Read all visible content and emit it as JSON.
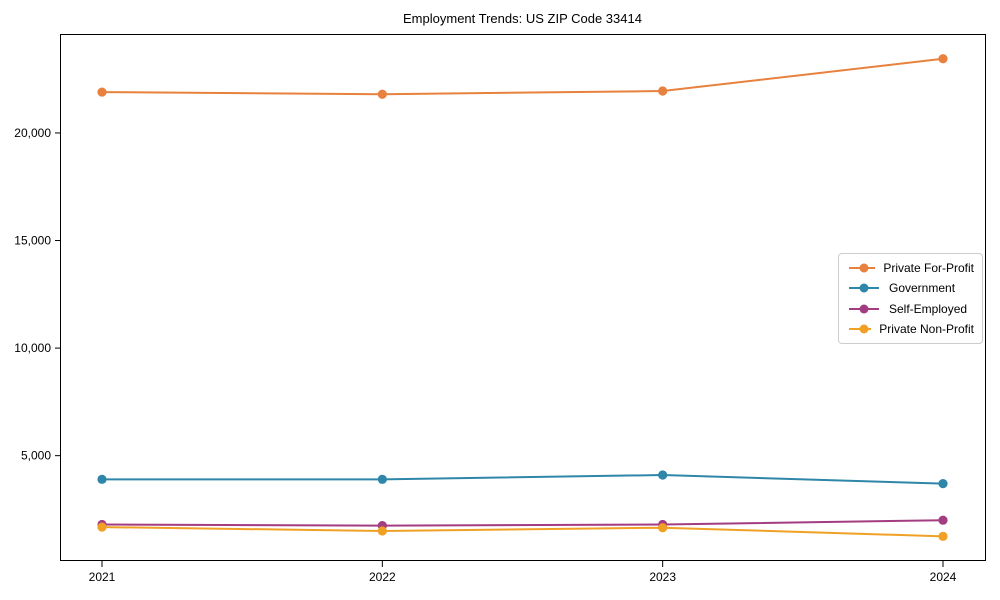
{
  "chart_data": {
    "type": "line",
    "title": "Employment Trends: US ZIP Code 33414",
    "xlabel": "",
    "ylabel": "",
    "x_tick_labels": [
      "2021",
      "2022",
      "2023",
      "2024"
    ],
    "categories": [
      2021,
      2022,
      2023,
      2024
    ],
    "series": [
      {
        "name": "Private For-Profit",
        "color": "#E8813E",
        "values": [
          21900,
          21800,
          21950,
          23450
        ]
      },
      {
        "name": "Government",
        "color": "#2E86A8",
        "values": [
          3900,
          3900,
          4100,
          3700
        ]
      },
      {
        "name": "Self-Employed",
        "color": "#A33C80",
        "values": [
          1800,
          1750,
          1800,
          2000
        ]
      },
      {
        "name": "Private Non-Profit",
        "color": "#F0A125",
        "values": [
          1680,
          1500,
          1650,
          1250
        ]
      }
    ],
    "yticks": [
      {
        "value": 5000,
        "label": "5,000"
      },
      {
        "value": 10000,
        "label": "10,000"
      },
      {
        "value": 15000,
        "label": "15,000"
      },
      {
        "value": 20000,
        "label": "20,000"
      }
    ],
    "ylim": [
      150,
      24600
    ],
    "grid": false,
    "marker": "circle",
    "legend_position": "center right",
    "axis_color": "#000000"
  }
}
